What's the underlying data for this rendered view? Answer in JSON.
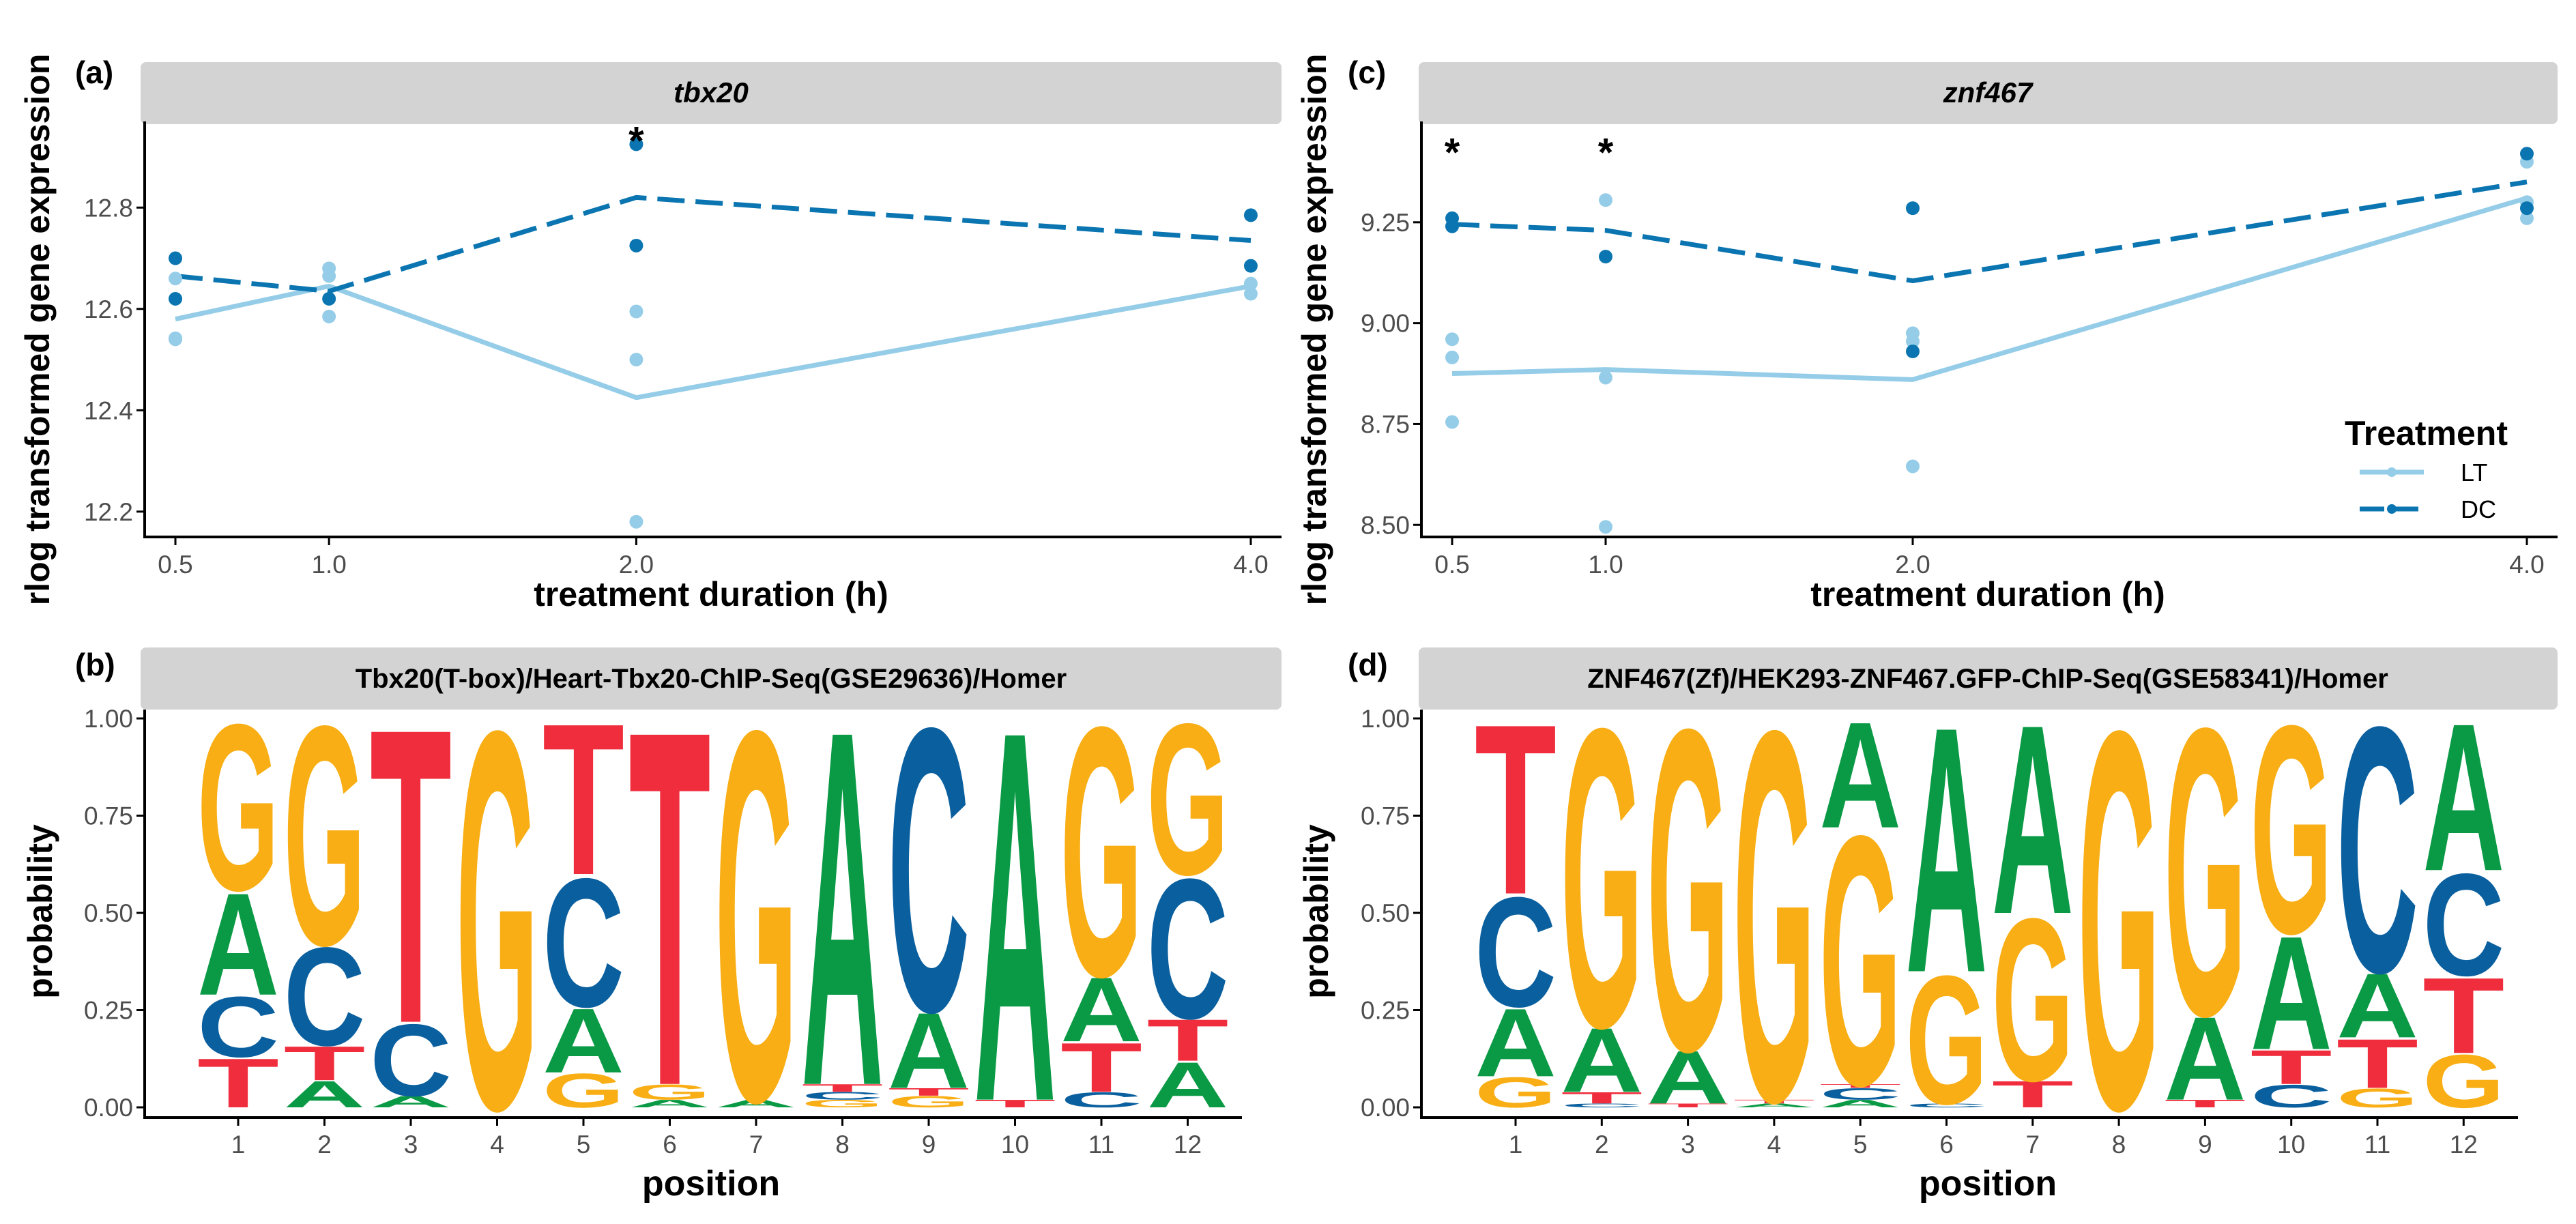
{
  "colors": {
    "LT": "#95cde8",
    "DC": "#0a75b0",
    "A": "#0a9a45",
    "C": "#0a5f9e",
    "G": "#f8ae14",
    "T": "#f02d3c",
    "strip": "#d3d3d3"
  },
  "chart_data": [
    {
      "panel": "(a)",
      "type": "line",
      "title": "tbx20",
      "xlabel": "treatment duration (h)",
      "ylabel": "rlog transformed gene expression",
      "xlim": [
        0.4,
        4.1
      ],
      "ylim": [
        12.15,
        12.97
      ],
      "xticks": [
        0.5,
        1.0,
        2.0,
        4.0
      ],
      "xtick_labels": [
        "0.5",
        "1.0",
        "2.0",
        "4.0"
      ],
      "yticks": [
        12.2,
        12.4,
        12.6,
        12.8
      ],
      "ytick_labels": [
        "12.2",
        "12.4",
        "12.6",
        "12.8"
      ],
      "significance": [
        {
          "x": 2.0,
          "y": 12.945,
          "label": "*"
        }
      ],
      "series": [
        {
          "name": "LT",
          "style": "solid",
          "x": [
            0.5,
            1.0,
            2.0,
            4.0
          ],
          "y": [
            12.58,
            12.645,
            12.425,
            12.645
          ],
          "points": [
            [
              0.5,
              12.66
            ],
            [
              0.5,
              12.54
            ],
            [
              0.5,
              12.542
            ],
            [
              1.0,
              12.68
            ],
            [
              1.0,
              12.665
            ],
            [
              1.0,
              12.585
            ],
            [
              2.0,
              12.595
            ],
            [
              2.0,
              12.5
            ],
            [
              2.0,
              12.18
            ],
            [
              4.0,
              12.65
            ],
            [
              4.0,
              12.63
            ]
          ]
        },
        {
          "name": "DC",
          "style": "dashed",
          "x": [
            0.5,
            1.0,
            2.0,
            4.0
          ],
          "y": [
            12.665,
            12.635,
            12.82,
            12.735
          ],
          "points": [
            [
              0.5,
              12.7
            ],
            [
              0.5,
              12.62
            ],
            [
              1.0,
              12.62
            ],
            [
              2.0,
              12.925
            ],
            [
              2.0,
              12.725
            ],
            [
              4.0,
              12.785
            ],
            [
              4.0,
              12.685
            ]
          ]
        }
      ]
    },
    {
      "panel": "(c)",
      "type": "line",
      "title": "znf467",
      "xlabel": "treatment duration (h)",
      "ylabel": "rlog transformed gene expression",
      "xlim": [
        0.4,
        4.1
      ],
      "ylim": [
        8.47,
        9.5
      ],
      "xticks": [
        0.5,
        1.0,
        2.0,
        4.0
      ],
      "xtick_labels": [
        "0.5",
        "1.0",
        "2.0",
        "4.0"
      ],
      "yticks": [
        8.5,
        8.75,
        9.0,
        9.25
      ],
      "ytick_labels": [
        "8.50",
        "8.75",
        "9.00",
        "9.25"
      ],
      "significance": [
        {
          "x": 0.5,
          "y": 9.44,
          "label": "*"
        },
        {
          "x": 1.0,
          "y": 9.44,
          "label": "*"
        }
      ],
      "legend": {
        "title": "Treatment",
        "entries": [
          "LT",
          "DC"
        ],
        "position": "bottom-right"
      },
      "series": [
        {
          "name": "LT",
          "style": "solid",
          "x": [
            0.5,
            1.0,
            2.0,
            4.0
          ],
          "y": [
            8.875,
            8.885,
            8.86,
            9.31
          ],
          "points": [
            [
              0.5,
              8.96
            ],
            [
              0.5,
              8.915
            ],
            [
              0.5,
              8.755
            ],
            [
              1.0,
              9.305
            ],
            [
              1.0,
              8.865
            ],
            [
              1.0,
              8.495
            ],
            [
              2.0,
              8.975
            ],
            [
              2.0,
              8.955
            ],
            [
              2.0,
              8.645
            ],
            [
              4.0,
              9.4
            ],
            [
              4.0,
              9.3
            ],
            [
              4.0,
              9.26
            ]
          ]
        },
        {
          "name": "DC",
          "style": "dashed",
          "x": [
            0.5,
            1.0,
            2.0,
            4.0
          ],
          "y": [
            9.245,
            9.23,
            9.105,
            9.35
          ],
          "points": [
            [
              0.5,
              9.26
            ],
            [
              0.5,
              9.24
            ],
            [
              1.0,
              9.165
            ],
            [
              2.0,
              9.285
            ],
            [
              2.0,
              8.93
            ],
            [
              4.0,
              9.42
            ],
            [
              4.0,
              9.285
            ]
          ]
        }
      ]
    },
    {
      "panel": "(b)",
      "type": "sequence-logo",
      "title": "Tbx20(T-box)/Heart-Tbx20-ChIP-Seq(GSE29636)/Homer",
      "xlabel": "position",
      "ylabel": "probability",
      "ylim": [
        0,
        1
      ],
      "yticks": [
        0,
        0.25,
        0.5,
        0.75,
        1.0
      ],
      "ytick_labels": [
        "0.00",
        "0.25",
        "0.50",
        "0.75",
        "1.00"
      ],
      "positions": [
        "1",
        "2",
        "3",
        "4",
        "5",
        "6",
        "7",
        "8",
        "9",
        "10",
        "11",
        "12"
      ],
      "stacks": [
        [
          {
            "b": "T",
            "p": 0.13
          },
          {
            "b": "C",
            "p": 0.16
          },
          {
            "b": "A",
            "p": 0.27
          },
          {
            "b": "G",
            "p": 0.44
          }
        ],
        [
          {
            "b": "A",
            "p": 0.07
          },
          {
            "b": "T",
            "p": 0.09
          },
          {
            "b": "C",
            "p": 0.26
          },
          {
            "b": "G",
            "p": 0.58
          }
        ],
        [
          {
            "b": "A",
            "p": 0.03
          },
          {
            "b": "C",
            "p": 0.19
          },
          {
            "b": "T",
            "p": 0.78
          }
        ],
        [
          {
            "b": "G",
            "p": 1.0
          }
        ],
        [
          {
            "b": "G",
            "p": 0.09
          },
          {
            "b": "A",
            "p": 0.17
          },
          {
            "b": "C",
            "p": 0.34
          },
          {
            "b": "T",
            "p": 0.4
          }
        ],
        [
          {
            "b": "A",
            "p": 0.02
          },
          {
            "b": "G",
            "p": 0.04
          },
          {
            "b": "T",
            "p": 0.94
          }
        ],
        [
          {
            "b": "A",
            "p": 0.02
          },
          {
            "b": "G",
            "p": 0.98
          }
        ],
        [
          {
            "b": "G",
            "p": 0.02
          },
          {
            "b": "C",
            "p": 0.02
          },
          {
            "b": "T",
            "p": 0.02
          },
          {
            "b": "A",
            "p": 0.94
          }
        ],
        [
          {
            "b": "G",
            "p": 0.03
          },
          {
            "b": "T",
            "p": 0.02
          },
          {
            "b": "A",
            "p": 0.2
          },
          {
            "b": "C",
            "p": 0.75
          }
        ],
        [
          {
            "b": "T",
            "p": 0.02
          },
          {
            "b": "A",
            "p": 0.98
          }
        ],
        [
          {
            "b": "C",
            "p": 0.04
          },
          {
            "b": "T",
            "p": 0.13
          },
          {
            "b": "A",
            "p": 0.17
          },
          {
            "b": "G",
            "p": 0.66
          }
        ],
        [
          {
            "b": "A",
            "p": 0.12
          },
          {
            "b": "T",
            "p": 0.11
          },
          {
            "b": "C",
            "p": 0.37
          },
          {
            "b": "G",
            "p": 0.4
          }
        ]
      ]
    },
    {
      "panel": "(d)",
      "type": "sequence-logo",
      "title": "ZNF467(Zf)/HEK293-ZNF467.GFP-ChIP-Seq(GSE58341)/Homer",
      "xlabel": "position",
      "ylabel": "probability",
      "ylim": [
        0,
        1
      ],
      "yticks": [
        0,
        0.25,
        0.5,
        0.75,
        1.0
      ],
      "ytick_labels": [
        "0.00",
        "0.25",
        "0.50",
        "0.75",
        "1.00"
      ],
      "positions": [
        "1",
        "2",
        "3",
        "4",
        "5",
        "6",
        "7",
        "8",
        "9",
        "10",
        "11",
        "12"
      ],
      "stacks": [
        [
          {
            "b": "G",
            "p": 0.08
          },
          {
            "b": "A",
            "p": 0.18
          },
          {
            "b": "C",
            "p": 0.29
          },
          {
            "b": "T",
            "p": 0.45
          }
        ],
        [
          {
            "b": "C",
            "p": 0.01
          },
          {
            "b": "T",
            "p": 0.03
          },
          {
            "b": "A",
            "p": 0.17
          },
          {
            "b": "G",
            "p": 0.79
          }
        ],
        [
          {
            "b": "T",
            "p": 0.01
          },
          {
            "b": "A",
            "p": 0.14
          },
          {
            "b": "G",
            "p": 0.85
          }
        ],
        [
          {
            "b": "A",
            "p": 0.01
          },
          {
            "b": "T",
            "p": 0.01
          },
          {
            "b": "G",
            "p": 0.98
          }
        ],
        [
          {
            "b": "A",
            "p": 0.02
          },
          {
            "b": "C",
            "p": 0.03
          },
          {
            "b": "T",
            "p": 0.01
          },
          {
            "b": "G",
            "p": 0.66
          },
          {
            "b": "A",
            "p": 0.28
          }
        ],
        [
          {
            "b": "C",
            "p": 0.01
          },
          {
            "b": "G",
            "p": 0.34
          },
          {
            "b": "A",
            "p": 0.65
          }
        ],
        [
          {
            "b": "T",
            "p": 0.07
          },
          {
            "b": "G",
            "p": 0.43
          },
          {
            "b": "A",
            "p": 0.5
          }
        ],
        [
          {
            "b": "G",
            "p": 1.0
          }
        ],
        [
          {
            "b": "T",
            "p": 0.02
          },
          {
            "b": "A",
            "p": 0.22
          },
          {
            "b": "G",
            "p": 0.76
          }
        ],
        [
          {
            "b": "C",
            "p": 0.06
          },
          {
            "b": "T",
            "p": 0.09
          },
          {
            "b": "A",
            "p": 0.3
          },
          {
            "b": "G",
            "p": 0.55
          }
        ],
        [
          {
            "b": "G",
            "p": 0.05
          },
          {
            "b": "T",
            "p": 0.13
          },
          {
            "b": "A",
            "p": 0.17
          },
          {
            "b": "C",
            "p": 0.65
          }
        ],
        [
          {
            "b": "G",
            "p": 0.14
          },
          {
            "b": "T",
            "p": 0.2
          },
          {
            "b": "C",
            "p": 0.27
          },
          {
            "b": "A",
            "p": 0.39
          }
        ]
      ]
    }
  ]
}
